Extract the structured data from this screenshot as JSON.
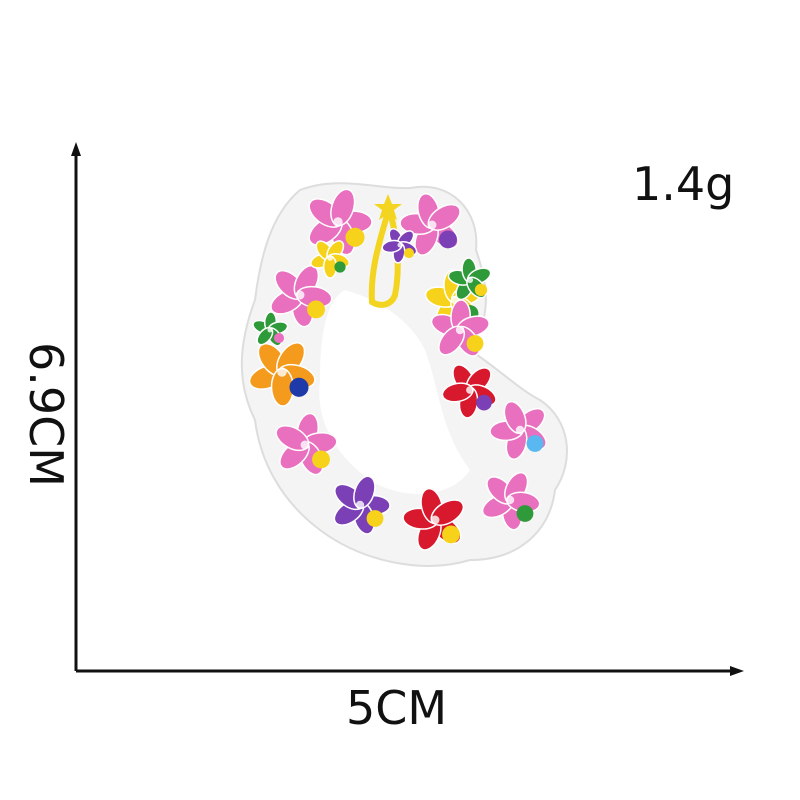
{
  "product": {
    "name": "flower-lei-embroidered-patch",
    "weight_label": "1.4g",
    "width_label": "5CM",
    "height_label": "6.9CM"
  },
  "colors": {
    "pink": "#e96fbf",
    "yellow": "#f6d31a",
    "red": "#d8182c",
    "purple": "#7b3fb6",
    "green": "#2f9a3a",
    "orange": "#f49a1c",
    "blue": "#1e3aa8",
    "lightblue": "#58b8ef",
    "tassel": "#f3d420",
    "outline": "#f2f2f2"
  }
}
